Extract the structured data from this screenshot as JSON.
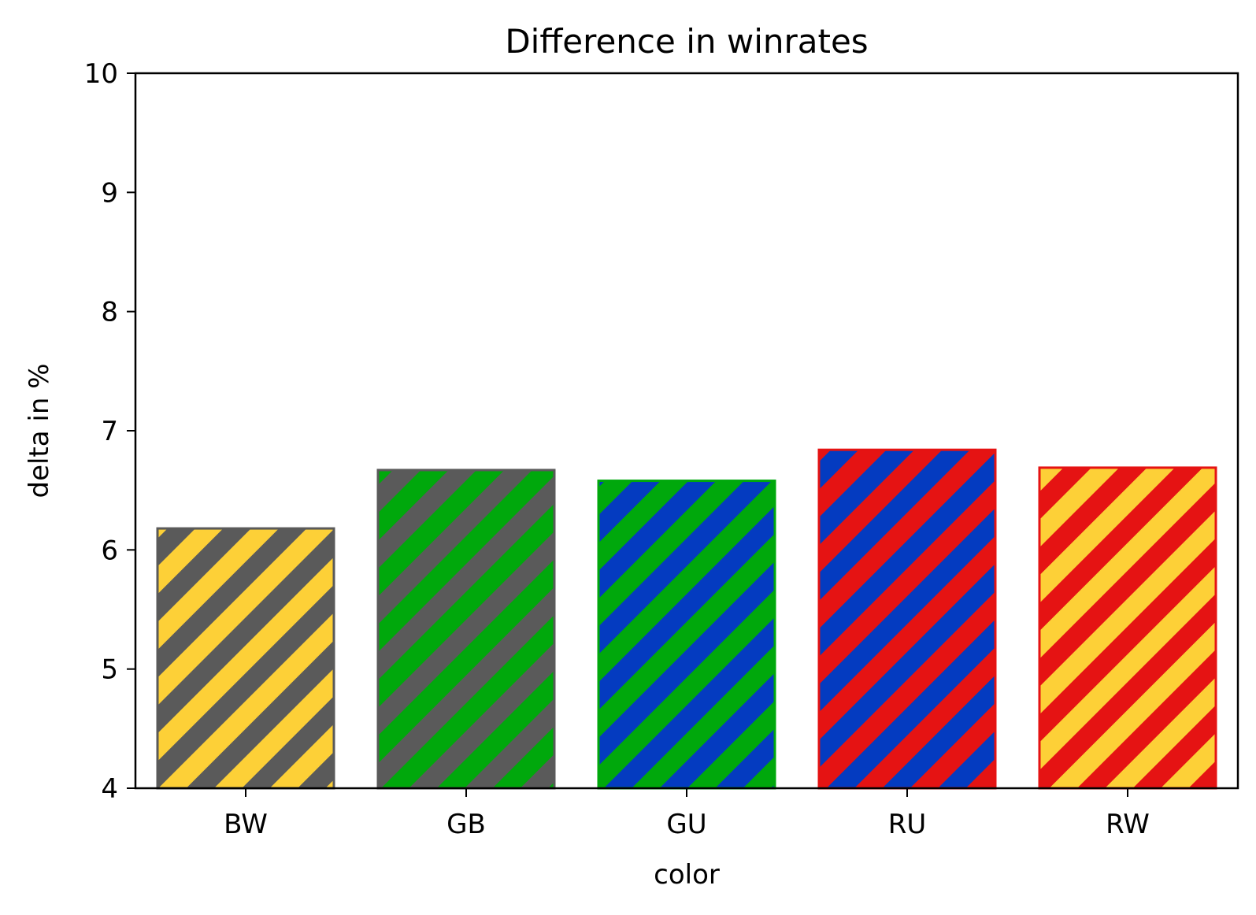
{
  "chart_data": {
    "type": "bar",
    "title": "Difference in winrates",
    "xlabel": "color",
    "ylabel": "delta in %",
    "categories": [
      "BW",
      "GB",
      "GU",
      "RU",
      "RW"
    ],
    "values": [
      6.18,
      6.67,
      6.58,
      6.84,
      6.69
    ],
    "ylim": [
      4,
      10
    ],
    "yticks": [
      "4",
      "5",
      "6",
      "7",
      "8",
      "9",
      "10"
    ],
    "grid": false,
    "legend": "none",
    "bar_colors": [
      {
        "base": "#5a5a5a",
        "stripe": "#fdd037"
      },
      {
        "base": "#5a5a5a",
        "stripe": "#00a80c"
      },
      {
        "base": "#00a80c",
        "stripe": "#043bc0"
      },
      {
        "base": "#e51313",
        "stripe": "#043bc0"
      },
      {
        "base": "#e51313",
        "stripe": "#fdd037"
      }
    ]
  }
}
